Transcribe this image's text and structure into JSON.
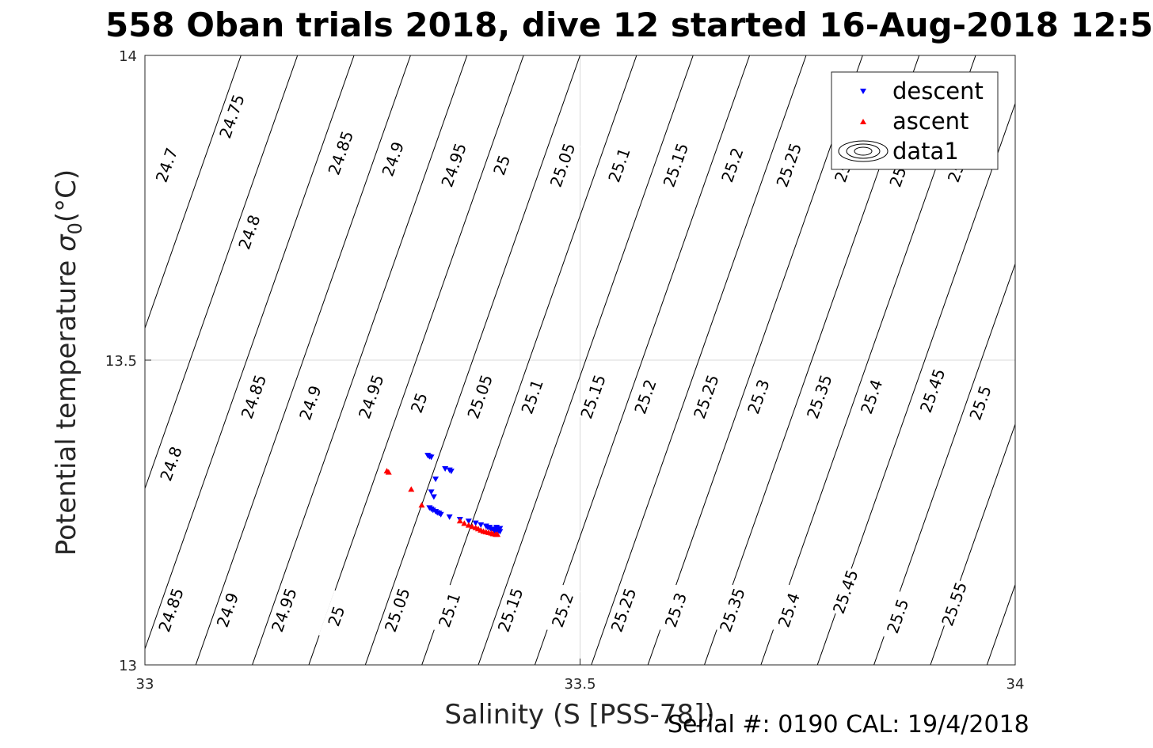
{
  "title": "558 Oban trials 2018, dive 12 started 16-Aug-2018 12:5",
  "footer": "Serial #: 0190  CAL: 19/4/2018",
  "chart_data": {
    "type": "scatter",
    "title": "558 Oban trials 2018, dive 12 started 16-Aug-2018 12:5",
    "xlabel": "Salinity (S [PSS-78])",
    "ylabel": "Potential temperature",
    "ylabel_symbol": "σ",
    "ylabel_subscript": "0",
    "ylabel_unit": "(°C)",
    "xlim": [
      33,
      34
    ],
    "ylim": [
      13,
      14
    ],
    "xticks": [
      "33",
      "33.5",
      "34"
    ],
    "yticks": [
      "13",
      "13.5",
      "14"
    ],
    "grid": true,
    "legend": {
      "position": "top-right",
      "entries": [
        "descent",
        "ascent",
        "data1"
      ]
    },
    "colors": {
      "descent": "#0000ff",
      "ascent": "#ff0000",
      "contour": "#000000",
      "grid": "#d9d9d9"
    },
    "contours": {
      "levels": [
        24.7,
        24.75,
        24.8,
        24.85,
        24.9,
        24.95,
        25.0,
        25.05,
        25.1,
        25.15,
        25.2,
        25.25,
        25.3,
        25.35,
        25.4,
        25.45,
        25.5,
        25.55
      ],
      "labels": [
        {
          "text": "24.7",
          "s": 33.025,
          "t": 13.82
        },
        {
          "text": "24.75",
          "s": 33.1,
          "t": 13.9
        },
        {
          "text": "24.85",
          "s": 33.225,
          "t": 13.84
        },
        {
          "text": "24.9",
          "s": 33.285,
          "t": 13.83
        },
        {
          "text": "24.95",
          "s": 33.355,
          "t": 13.82
        },
        {
          "text": "25",
          "s": 33.41,
          "t": 13.82
        },
        {
          "text": "25.05",
          "s": 33.48,
          "t": 13.82
        },
        {
          "text": "25.1",
          "s": 33.545,
          "t": 13.82
        },
        {
          "text": "25.15",
          "s": 33.61,
          "t": 13.82
        },
        {
          "text": "25.2",
          "s": 33.675,
          "t": 13.82
        },
        {
          "text": "25.25",
          "s": 33.74,
          "t": 13.82
        },
        {
          "text": "25.3",
          "s": 33.805,
          "t": 13.82
        },
        {
          "text": "25.35",
          "s": 33.87,
          "t": 13.82
        },
        {
          "text": "25.4",
          "s": 33.935,
          "t": 13.82
        },
        {
          "text": "24.8",
          "s": 33.12,
          "t": 13.71
        },
        {
          "text": "24.85",
          "s": 33.125,
          "t": 13.44
        },
        {
          "text": "24.9",
          "s": 33.19,
          "t": 13.43
        },
        {
          "text": "24.95",
          "s": 33.26,
          "t": 13.44
        },
        {
          "text": "25",
          "s": 33.315,
          "t": 13.43
        },
        {
          "text": "25.05",
          "s": 33.385,
          "t": 13.44
        },
        {
          "text": "25.1",
          "s": 33.445,
          "t": 13.44
        },
        {
          "text": "25.15",
          "s": 33.515,
          "t": 13.44
        },
        {
          "text": "25.2",
          "s": 33.575,
          "t": 13.44
        },
        {
          "text": "25.25",
          "s": 33.645,
          "t": 13.44
        },
        {
          "text": "25.3",
          "s": 33.705,
          "t": 13.44
        },
        {
          "text": "25.35",
          "s": 33.775,
          "t": 13.44
        },
        {
          "text": "25.4",
          "s": 33.835,
          "t": 13.44
        },
        {
          "text": "25.45",
          "s": 33.905,
          "t": 13.45
        },
        {
          "text": "25.5",
          "s": 33.96,
          "t": 13.43
        },
        {
          "text": "24.8",
          "s": 33.03,
          "t": 13.33
        },
        {
          "text": "24.85",
          "s": 33.03,
          "t": 13.09
        },
        {
          "text": "24.9",
          "s": 33.095,
          "t": 13.09
        },
        {
          "text": "24.95",
          "s": 33.16,
          "t": 13.09
        },
        {
          "text": "25",
          "s": 33.22,
          "t": 13.08
        },
        {
          "text": "25.05",
          "s": 33.29,
          "t": 13.09
        },
        {
          "text": "25.1",
          "s": 33.35,
          "t": 13.09
        },
        {
          "text": "25.15",
          "s": 33.42,
          "t": 13.09
        },
        {
          "text": "25.2",
          "s": 33.48,
          "t": 13.09
        },
        {
          "text": "25.25",
          "s": 33.55,
          "t": 13.09
        },
        {
          "text": "25.3",
          "s": 33.61,
          "t": 13.09
        },
        {
          "text": "25.35",
          "s": 33.675,
          "t": 13.09
        },
        {
          "text": "25.4",
          "s": 33.74,
          "t": 13.09
        },
        {
          "text": "25.45",
          "s": 33.805,
          "t": 13.12
        },
        {
          "text": "25.5",
          "s": 33.865,
          "t": 13.08
        },
        {
          "text": "25.55",
          "s": 33.93,
          "t": 13.1
        }
      ]
    },
    "series": [
      {
        "name": "descent",
        "marker": "triangle-down",
        "points": [
          [
            33.325,
            13.344
          ],
          [
            33.327,
            13.342
          ],
          [
            33.329,
            13.341
          ],
          [
            33.345,
            13.322
          ],
          [
            33.35,
            13.32
          ],
          [
            33.352,
            13.318
          ],
          [
            33.334,
            13.305
          ],
          [
            33.329,
            13.284
          ],
          [
            33.332,
            13.276
          ],
          [
            33.327,
            13.258
          ],
          [
            33.329,
            13.256
          ],
          [
            33.331,
            13.254
          ],
          [
            33.334,
            13.252
          ],
          [
            33.336,
            13.25
          ],
          [
            33.338,
            13.249
          ],
          [
            33.34,
            13.247
          ],
          [
            33.35,
            13.243
          ],
          [
            33.362,
            13.239
          ],
          [
            33.372,
            13.236
          ],
          [
            33.38,
            13.233
          ],
          [
            33.386,
            13.23
          ],
          [
            33.392,
            13.228
          ],
          [
            33.396,
            13.226
          ],
          [
            33.4,
            13.223
          ],
          [
            33.404,
            13.221
          ],
          [
            33.406,
            13.22
          ],
          [
            33.408,
            13.219
          ],
          [
            33.402,
            13.22
          ],
          [
            33.398,
            13.222
          ],
          [
            33.394,
            13.226
          ],
          [
            33.404,
            13.226
          ],
          [
            33.408,
            13.224
          ]
        ]
      },
      {
        "name": "ascent",
        "marker": "triangle-up",
        "points": [
          [
            33.278,
            13.318
          ],
          [
            33.28,
            13.316
          ],
          [
            33.306,
            13.288
          ],
          [
            33.318,
            13.262
          ],
          [
            33.362,
            13.236
          ],
          [
            33.367,
            13.232
          ],
          [
            33.372,
            13.229
          ],
          [
            33.376,
            13.227
          ],
          [
            33.38,
            13.225
          ],
          [
            33.383,
            13.223
          ],
          [
            33.386,
            13.221
          ],
          [
            33.389,
            13.219
          ],
          [
            33.392,
            13.218
          ],
          [
            33.395,
            13.217
          ],
          [
            33.398,
            13.216
          ],
          [
            33.4,
            13.215
          ],
          [
            33.403,
            13.214
          ],
          [
            33.405,
            13.214
          ]
        ]
      }
    ]
  }
}
